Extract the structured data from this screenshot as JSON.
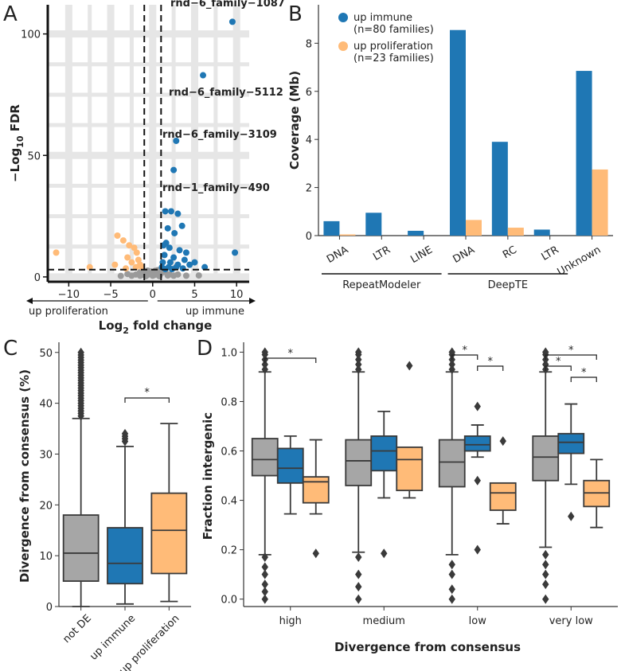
{
  "panels": {
    "A": "A",
    "B": "B",
    "C": "C",
    "D": "D"
  },
  "colors": {
    "immune": "#1f77b4",
    "proliferation": "#ffbb78",
    "notde": "#a6a6a6",
    "notde_point": "#9a9a9a",
    "grid": "#e6e6e6"
  },
  "chart_data": [
    {
      "id": "A",
      "type": "scatter",
      "title": "",
      "xlabel_main": "Log",
      "xlabel_sub": "2",
      "xlabel_rest": " fold change",
      "ylabel_prefix": "−Log",
      "ylabel_sub": "10",
      "ylabel_rest": " FDR",
      "xlim": [
        -12.5,
        11.5
      ],
      "ylim": [
        -2,
        112
      ],
      "xticks": [
        -10,
        -5,
        0,
        5,
        10
      ],
      "xtick_labels": [
        "−10",
        "−5",
        "0",
        "5",
        "10"
      ],
      "yticks": [
        0,
        50,
        100
      ],
      "grid": true,
      "thresholds": {
        "x": [
          -1,
          1
        ],
        "y": 3
      },
      "direction_left": "up proliferation",
      "direction_right": "up immune",
      "series": [
        {
          "name": "up immune",
          "points": [
            [
              9.5,
              105
            ],
            [
              6,
              83
            ],
            [
              2.8,
              56
            ],
            [
              2.5,
              44
            ],
            [
              9.8,
              10
            ],
            [
              1.5,
              27
            ],
            [
              2.2,
              27
            ],
            [
              3,
              26
            ],
            [
              3.5,
              21
            ],
            [
              1.8,
              20
            ],
            [
              2.6,
              18
            ],
            [
              1.6,
              14
            ],
            [
              1.3,
              13
            ],
            [
              2,
              12
            ],
            [
              3.2,
              11
            ],
            [
              4,
              10
            ],
            [
              1.4,
              9
            ],
            [
              2.5,
              8
            ],
            [
              3.8,
              7
            ],
            [
              5,
              6
            ],
            [
              1.2,
              6
            ],
            [
              2.1,
              6
            ],
            [
              3,
              5
            ],
            [
              4.4,
              5
            ],
            [
              6.2,
              4
            ],
            [
              1.1,
              4
            ],
            [
              1.9,
              4
            ],
            [
              2.8,
              4
            ],
            [
              3.6,
              3.5
            ],
            [
              1.5,
              3.2
            ],
            [
              2.3,
              3.2
            ]
          ]
        },
        {
          "name": "up proliferation",
          "points": [
            [
              -11.5,
              10
            ],
            [
              -7.5,
              4
            ],
            [
              -4.2,
              17
            ],
            [
              -3.5,
              15
            ],
            [
              -2.8,
              13
            ],
            [
              -2.2,
              12
            ],
            [
              -1.9,
              10
            ],
            [
              -3,
              8
            ],
            [
              -1.7,
              7
            ],
            [
              -2.5,
              6
            ],
            [
              -1.5,
              5
            ],
            [
              -4.5,
              5
            ],
            [
              -2,
              4
            ],
            [
              -1.3,
              4
            ],
            [
              -3.2,
              3.5
            ]
          ]
        },
        {
          "name": "not DE",
          "points": [
            [
              -1.5,
              2
            ],
            [
              -1,
              1.5
            ],
            [
              -0.5,
              1
            ],
            [
              0,
              0.5
            ],
            [
              0.5,
              1
            ],
            [
              1,
              1.5
            ],
            [
              1.5,
              2
            ],
            [
              -2,
              1
            ],
            [
              -1.5,
              0.5
            ],
            [
              0,
              1.5
            ],
            [
              0.3,
              2.5
            ],
            [
              -0.3,
              2.2
            ],
            [
              -0.8,
              0.3
            ],
            [
              0.8,
              0.3
            ],
            [
              2,
              1
            ],
            [
              2.5,
              0.5
            ],
            [
              -2.5,
              0.5
            ],
            [
              0.2,
              0.8
            ],
            [
              -0.2,
              1.2
            ],
            [
              1.8,
              0.6
            ],
            [
              -1.2,
              0.9
            ],
            [
              -0.6,
              2.6
            ],
            [
              0.6,
              2.8
            ],
            [
              3,
              1
            ],
            [
              -3,
              1.2
            ],
            [
              4,
              0.5
            ],
            [
              -3.8,
              0.4
            ],
            [
              5.5,
              0.6
            ]
          ]
        }
      ],
      "labels": [
        {
          "text": "rnd−6_family−1087",
          "x": 9.5,
          "y": 105
        },
        {
          "text": "rnd−6_family−5112",
          "x": 6,
          "y": 83
        },
        {
          "text": "rnd−6_family−3109",
          "x": 2.8,
          "y": 56
        },
        {
          "text": "rnd−1_family−490",
          "x": 2.5,
          "y": 44
        }
      ]
    },
    {
      "id": "B",
      "type": "bar",
      "title": "",
      "ylabel": "Coverage (Mb)",
      "ylim": [
        0,
        9.6
      ],
      "yticks": [
        0,
        2,
        4,
        6,
        8
      ],
      "categories": [
        "DNA",
        "LTR",
        "LINE",
        "DNA",
        "RC",
        "LTR",
        "Unknown"
      ],
      "groups": [
        {
          "label": "RepeatModeler",
          "from": 0,
          "to": 2
        },
        {
          "label": "DeepTE",
          "from": 3,
          "to": 5
        }
      ],
      "series": [
        {
          "name": "up immune",
          "values": [
            0.6,
            0.95,
            0.2,
            8.55,
            3.9,
            0.25,
            6.85
          ]
        },
        {
          "name": "up proliferation",
          "values": [
            0.05,
            0.0,
            0.0,
            0.65,
            0.33,
            0.0,
            2.75
          ]
        }
      ],
      "legend": [
        {
          "line1": "up immune",
          "line2": "(n=80 families)"
        },
        {
          "line1": "up proliferation",
          "line2": "(n=23 families)"
        }
      ],
      "legend_position": "top-left"
    },
    {
      "id": "C",
      "type": "box",
      "title": "",
      "ylabel": "Divergence from consensus (%)",
      "ylim": [
        0,
        52
      ],
      "yticks": [
        0,
        10,
        20,
        30,
        40,
        50
      ],
      "categories": [
        "not DE",
        "up immune",
        "up proliferation"
      ],
      "boxes": [
        {
          "q1": 5,
          "median": 10.5,
          "q3": 18,
          "whislo": 0,
          "whishi": 37,
          "outliers": [
            37.5,
            38,
            38.5,
            39,
            39.5,
            40,
            40.5,
            41,
            41.5,
            42,
            42.5,
            43,
            43.5,
            44,
            44.5,
            45,
            45.5,
            46,
            46.5,
            47,
            47.5,
            48,
            48.5,
            49,
            49.5,
            50
          ]
        },
        {
          "q1": 4.5,
          "median": 8.5,
          "q3": 15.5,
          "whislo": 0.5,
          "whishi": 31.5,
          "outliers": [
            32.5,
            33,
            33.5,
            34
          ]
        },
        {
          "q1": 6.5,
          "median": 15,
          "q3": 22.3,
          "whislo": 1,
          "whishi": 36,
          "outliers": []
        }
      ],
      "significance": [
        {
          "from": 1,
          "to": 2,
          "label": "*"
        }
      ]
    },
    {
      "id": "D",
      "type": "box",
      "title": "",
      "ylabel": "Fraction intergenic",
      "xlabel": "Divergence from consensus",
      "ylim": [
        -0.03,
        1.04
      ],
      "yticks": [
        0.0,
        0.2,
        0.4,
        0.6,
        0.8,
        1.0
      ],
      "ytick_labels": [
        "0.0",
        "0.2",
        "0.4",
        "0.6",
        "0.8",
        "1.0"
      ],
      "categories": [
        "high",
        "medium",
        "low",
        "very low"
      ],
      "groups": [
        [
          {
            "series": "not DE",
            "q1": 0.5,
            "median": 0.565,
            "q3": 0.65,
            "whislo": 0.18,
            "whishi": 0.92,
            "outliers": [
              0.0,
              0.03,
              0.06,
              0.1,
              0.13,
              0.17,
              0.93,
              0.95,
              0.97,
              0.99,
              1.0
            ]
          },
          {
            "series": "up immune",
            "q1": 0.47,
            "median": 0.53,
            "q3": 0.61,
            "whislo": 0.345,
            "whishi": 0.66,
            "outliers": []
          },
          {
            "series": "up proliferation",
            "q1": 0.39,
            "median": 0.475,
            "q3": 0.495,
            "whislo": 0.345,
            "whishi": 0.645,
            "outliers": [
              0.185
            ]
          }
        ],
        [
          {
            "series": "not DE",
            "q1": 0.46,
            "median": 0.56,
            "q3": 0.645,
            "whislo": 0.19,
            "whishi": 0.92,
            "outliers": [
              0.0,
              0.05,
              0.1,
              0.17,
              0.93,
              0.95,
              0.97,
              0.99,
              1.0
            ]
          },
          {
            "series": "up immune",
            "q1": 0.52,
            "median": 0.6,
            "q3": 0.66,
            "whislo": 0.41,
            "whishi": 0.76,
            "outliers": [
              0.185
            ]
          },
          {
            "series": "up proliferation",
            "q1": 0.44,
            "median": 0.565,
            "q3": 0.615,
            "whislo": 0.41,
            "whishi": 0.615,
            "outliers": [
              0.945
            ]
          }
        ],
        [
          {
            "series": "not DE",
            "q1": 0.455,
            "median": 0.555,
            "q3": 0.645,
            "whislo": 0.18,
            "whishi": 0.92,
            "outliers": [
              0.0,
              0.04,
              0.1,
              0.14,
              0.93,
              0.95,
              0.97,
              0.99,
              1.0
            ]
          },
          {
            "series": "up immune",
            "q1": 0.6,
            "median": 0.625,
            "q3": 0.66,
            "whislo": 0.575,
            "whishi": 0.705,
            "outliers": [
              0.2,
              0.48,
              0.78
            ]
          },
          {
            "series": "up proliferation",
            "q1": 0.36,
            "median": 0.43,
            "q3": 0.47,
            "whislo": 0.305,
            "whishi": 0.47,
            "outliers": [
              0.64
            ]
          }
        ],
        [
          {
            "series": "not DE",
            "q1": 0.48,
            "median": 0.575,
            "q3": 0.66,
            "whislo": 0.21,
            "whishi": 0.92,
            "outliers": [
              0.0,
              0.06,
              0.1,
              0.14,
              0.18,
              0.93,
              0.95,
              0.97,
              0.99,
              1.0
            ]
          },
          {
            "series": "up immune",
            "q1": 0.59,
            "median": 0.635,
            "q3": 0.67,
            "whislo": 0.465,
            "whishi": 0.79,
            "outliers": [
              0.335
            ]
          },
          {
            "series": "up proliferation",
            "q1": 0.375,
            "median": 0.43,
            "q3": 0.48,
            "whislo": 0.29,
            "whishi": 0.565,
            "outliers": []
          }
        ]
      ],
      "significance": [
        {
          "group": 0,
          "from": 0,
          "to": 2,
          "level": 0,
          "label": "*"
        },
        {
          "group": 2,
          "from": 0,
          "to": 1,
          "level": 0,
          "label": "*"
        },
        {
          "group": 2,
          "from": 1,
          "to": 2,
          "level": 1,
          "label": "*"
        },
        {
          "group": 3,
          "from": 0,
          "to": 2,
          "level": 0,
          "label": "*"
        },
        {
          "group": 3,
          "from": 0,
          "to": 1,
          "level": 1,
          "label": "*"
        },
        {
          "group": 3,
          "from": 1,
          "to": 2,
          "level": 2,
          "label": "*"
        }
      ]
    }
  ]
}
